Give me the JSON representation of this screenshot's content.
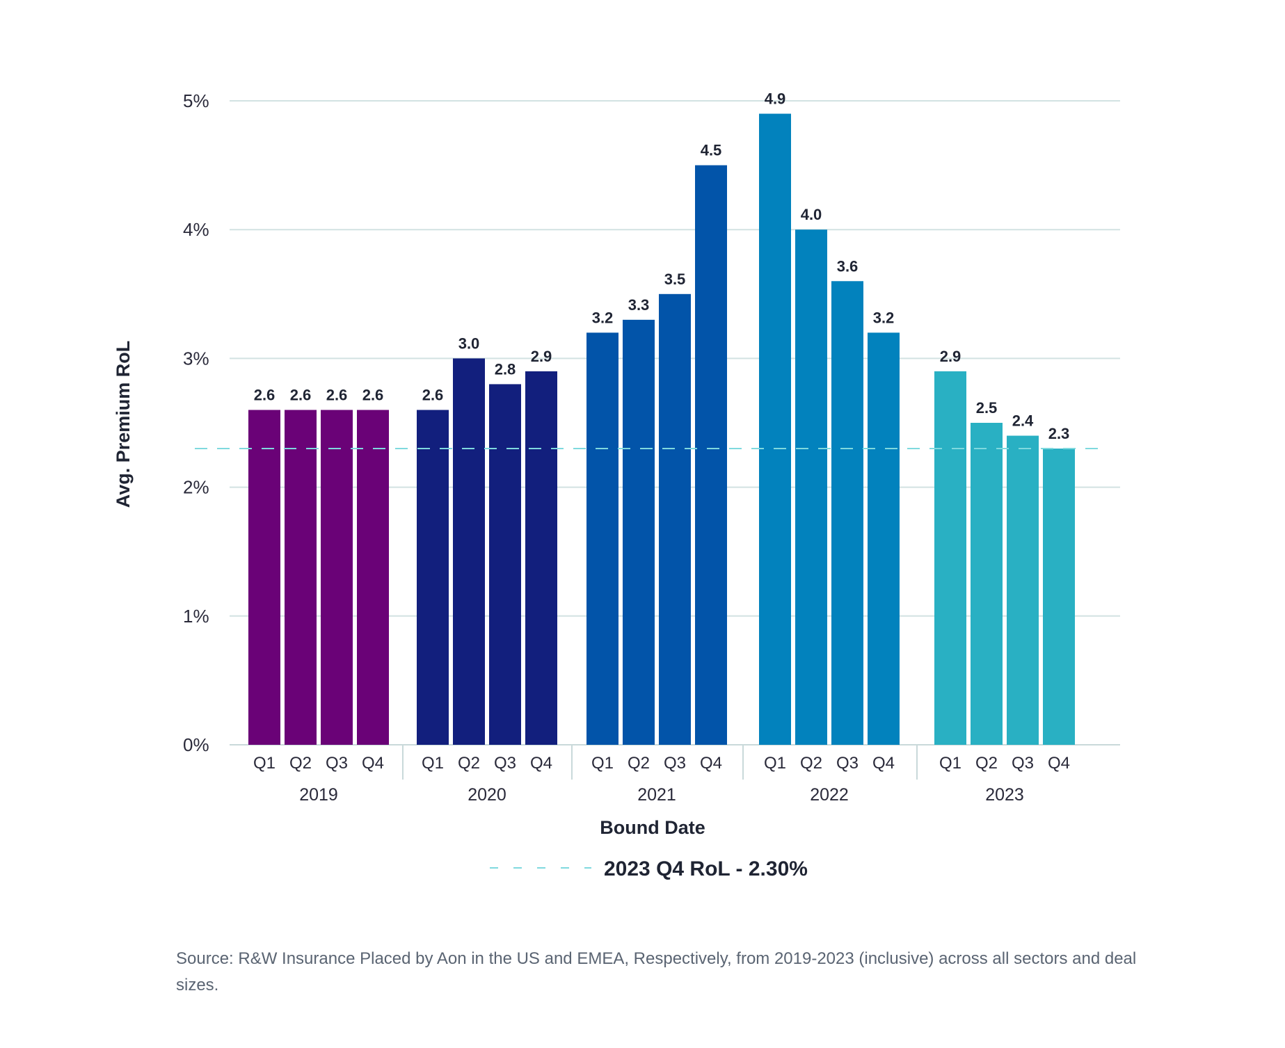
{
  "chart_data": {
    "type": "bar",
    "y_axis_title": "Avg. Premium RoL",
    "x_axis_title": "Bound Date",
    "y_ticks": [
      "0%",
      "1%",
      "2%",
      "3%",
      "4%",
      "5%"
    ],
    "ylim": [
      0,
      5
    ],
    "grid": true,
    "groups": [
      {
        "year": "2019",
        "color": "#6a0277",
        "quarters": [
          "Q1",
          "Q2",
          "Q3",
          "Q4"
        ],
        "values": [
          2.6,
          2.6,
          2.6,
          2.6
        ],
        "labels": [
          "2.6",
          "2.6",
          "2.6",
          "2.6"
        ]
      },
      {
        "year": "2020",
        "color": "#121f7d",
        "quarters": [
          "Q1",
          "Q2",
          "Q3",
          "Q4"
        ],
        "values": [
          2.6,
          3.0,
          2.8,
          2.9
        ],
        "labels": [
          "2.6",
          "3.0",
          "2.8",
          "2.9"
        ]
      },
      {
        "year": "2021",
        "color": "#0254a9",
        "quarters": [
          "Q1",
          "Q2",
          "Q3",
          "Q4"
        ],
        "values": [
          3.2,
          3.3,
          3.5,
          4.5
        ],
        "labels": [
          "3.2",
          "3.3",
          "3.5",
          "4.5"
        ]
      },
      {
        "year": "2022",
        "color": "#0282bd",
        "quarters": [
          "Q1",
          "Q2",
          "Q3",
          "Q4"
        ],
        "values": [
          4.9,
          4.0,
          3.6,
          3.2
        ],
        "labels": [
          "4.9",
          "4.0",
          "3.6",
          "3.2"
        ]
      },
      {
        "year": "2023",
        "color": "#29b0c3",
        "quarters": [
          "Q1",
          "Q2",
          "Q3",
          "Q4"
        ],
        "values": [
          2.9,
          2.5,
          2.4,
          2.3
        ],
        "labels": [
          "2.9",
          "2.5",
          "2.4",
          "2.3"
        ]
      }
    ],
    "reference_line": {
      "value": 2.3,
      "label": "2023 Q4 RoL - 2.30%",
      "color": "#7fd9de",
      "style": "dashed"
    },
    "legend_position": "bottom-center"
  },
  "source_note": "Source: R&W Insurance Placed by Aon in the US and EMEA, Respectively, from 2019-2023 (inclusive) across all sectors and deal sizes."
}
